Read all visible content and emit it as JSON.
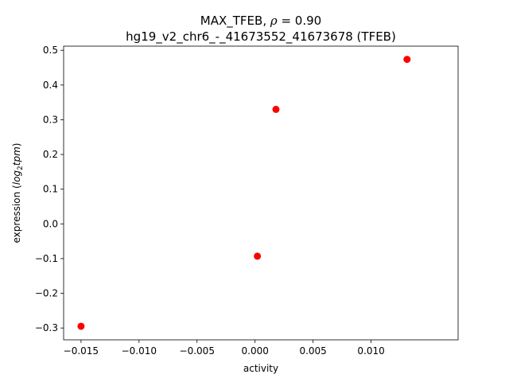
{
  "chart_data": {
    "type": "scatter",
    "title_line1_prefix": "MAX_TFEB, ",
    "title_rho_symbol": "ρ",
    "title_rho_value": " = 0.90",
    "title_line2": "hg19_v2_chr6_-_41673552_41673678 (TFEB)",
    "xlabel": "activity",
    "ylabel_prefix": "expression (",
    "ylabel_log": "log",
    "ylabel_sub": "2",
    "ylabel_tpm": "tpm",
    "ylabel_suffix": ")",
    "xlim": [
      -0.0165,
      0.0175
    ],
    "ylim": [
      -0.334,
      0.512
    ],
    "x_ticks": [
      {
        "value": -0.015,
        "label": "−0.015"
      },
      {
        "value": -0.01,
        "label": "−0.010"
      },
      {
        "value": -0.005,
        "label": "−0.005"
      },
      {
        "value": 0.0,
        "label": "0.000"
      },
      {
        "value": 0.005,
        "label": "0.005"
      },
      {
        "value": 0.01,
        "label": "0.010"
      }
    ],
    "y_ticks": [
      {
        "value": -0.3,
        "label": "−0.3"
      },
      {
        "value": -0.2,
        "label": "−0.2"
      },
      {
        "value": -0.1,
        "label": "−0.1"
      },
      {
        "value": 0.0,
        "label": "0.0"
      },
      {
        "value": 0.1,
        "label": "0.1"
      },
      {
        "value": 0.2,
        "label": "0.2"
      },
      {
        "value": 0.3,
        "label": "0.3"
      },
      {
        "value": 0.4,
        "label": "0.4"
      },
      {
        "value": 0.5,
        "label": "0.5"
      }
    ],
    "series": [
      {
        "color": "#ff0000",
        "points": [
          {
            "x": -0.015,
            "y": -0.295
          },
          {
            "x": 0.0002,
            "y": -0.093
          },
          {
            "x": 0.0018,
            "y": 0.33
          },
          {
            "x": 0.0131,
            "y": 0.474
          }
        ]
      }
    ],
    "grid": false,
    "legend": "none"
  }
}
